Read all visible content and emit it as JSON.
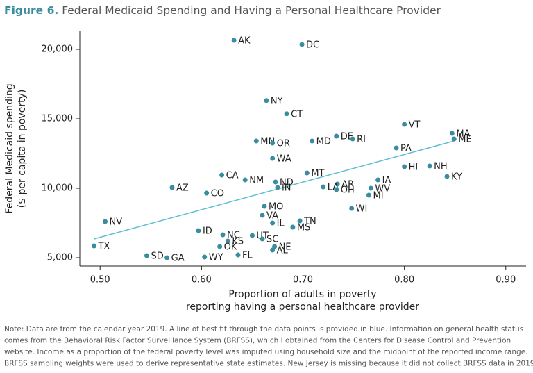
{
  "chart_data": {
    "type": "scatter",
    "title_prefix": "Figure 6.",
    "title": "Federal Medicaid Spending and Having a Personal Healthcare Provider",
    "x_label": [
      "Proportion of adults in poverty",
      "reporting having a personal healthcare provider"
    ],
    "y_label": [
      "Federal Medicaid spending",
      "($ per capita in poverty)"
    ],
    "note": [
      "Note: Data are from the calendar year 2019. A line of best fit through the data points is provided in blue. Information on general health status",
      "comes from the  Behavioral Risk Factor Surveillance System (BRFSS), which I obtained from the Centers for Disease Control and Prevention",
      "website. Income as a proportion of the federal poverty level was imputed using household size and the midpoint of the reported income range.",
      "BRFSS sampling weights were used to derive representative state estimates. New Jersey is missing because it did not collect BRFSS data in 2019."
    ],
    "color": "#3a8d9e",
    "point_labels": [
      "AK",
      "DC",
      "NY",
      "CT",
      "VT",
      "MA",
      "ME",
      "DE",
      "RI",
      "MN",
      "OR",
      "MD",
      "PA",
      "WA",
      "HI",
      "NH",
      "CA",
      "MT",
      "NM",
      "KY",
      "IA",
      "ND",
      "AR",
      "AZ",
      "LA",
      "WV",
      "IN",
      "OH",
      "CO",
      "MI",
      "MO",
      "WI",
      "VA",
      "NV",
      "TN",
      "IL",
      "MS",
      "ID",
      "NC",
      "UT",
      "KS",
      "SC",
      "NE",
      "OK",
      "TX",
      "AL",
      "SD",
      "FL",
      "GA",
      "WY"
    ],
    "x": [
      0.632,
      0.699,
      0.664,
      0.684,
      0.8,
      0.847,
      0.849,
      0.733,
      0.749,
      0.654,
      0.67,
      0.709,
      0.792,
      0.67,
      0.8,
      0.825,
      0.62,
      0.704,
      0.643,
      0.842,
      0.774,
      0.673,
      0.734,
      0.571,
      0.72,
      0.767,
      0.675,
      0.733,
      0.605,
      0.765,
      0.662,
      0.748,
      0.66,
      0.505,
      0.697,
      0.67,
      0.69,
      0.597,
      0.621,
      0.65,
      0.626,
      0.66,
      0.672,
      0.618,
      0.494,
      0.67,
      0.546,
      0.636,
      0.566,
      0.603
    ],
    "values": [
      20650,
      20350,
      16310,
      15360,
      14600,
      13950,
      13550,
      13750,
      13550,
      13400,
      13250,
      13400,
      12900,
      12150,
      11550,
      11600,
      10950,
      11100,
      10600,
      10850,
      10600,
      10450,
      10300,
      10050,
      10100,
      10000,
      10050,
      9900,
      9650,
      9500,
      8700,
      8550,
      8050,
      7600,
      7650,
      7500,
      7200,
      6950,
      6650,
      6600,
      6200,
      6350,
      5800,
      5800,
      5850,
      5550,
      5150,
      5200,
      5000,
      5050
    ],
    "trend_line": {
      "color": "#5bbfcf",
      "x": [
        0.494,
        0.849
      ],
      "y": [
        6350,
        13400
      ]
    },
    "xlim": [
      0.48,
      0.92
    ],
    "ylim": [
      4400,
      21300
    ],
    "xticks": [
      {
        "value": 0.5,
        "label": "0.50"
      },
      {
        "value": 0.6,
        "label": "0.60"
      },
      {
        "value": 0.7,
        "label": "0.70"
      },
      {
        "value": 0.8,
        "label": "0.80"
      },
      {
        "value": 0.9,
        "label": "0.90"
      }
    ],
    "yticks": [
      {
        "value": 5000,
        "label": "5,000"
      },
      {
        "value": 10000,
        "label": "10,000"
      },
      {
        "value": 15000,
        "label": "15,000"
      },
      {
        "value": 20000,
        "label": "20,000"
      }
    ]
  }
}
